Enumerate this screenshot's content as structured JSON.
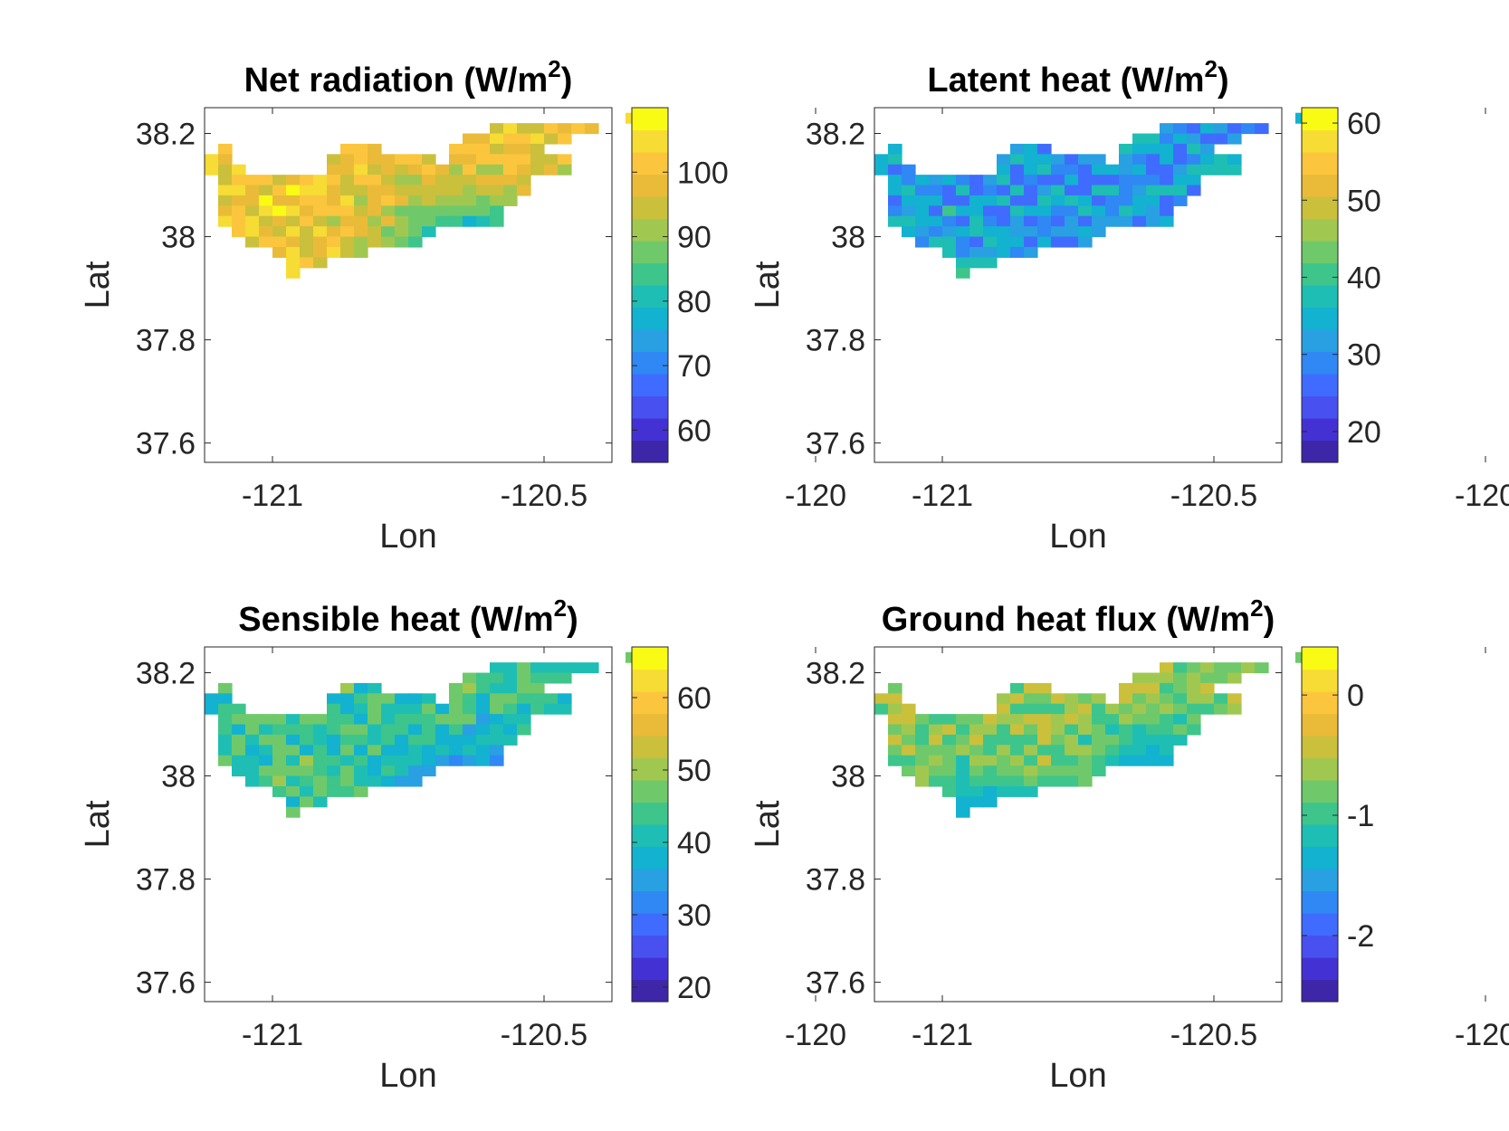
{
  "colormap": [
    "#3e26a8",
    "#4431d3",
    "#4850f0",
    "#3f6cfe",
    "#2f88f4",
    "#28a0e2",
    "#12b2d0",
    "#1ebeb4",
    "#3dc58c",
    "#6fc96a",
    "#a0c850",
    "#cac03c",
    "#eabb38",
    "#fbc63d",
    "#f6dc34",
    "#f9fb14"
  ],
  "chart_data": [
    {
      "type": "heatmap",
      "title": "Net radiation (W/m",
      "title_sup": "2",
      "title_close": ")",
      "xlabel": "Lon",
      "ylabel": "Lat",
      "xlim": [
        -121.125,
        -120.375
      ],
      "ylim": [
        37.5625,
        38.25
      ],
      "xticks": [
        -121,
        -120.5,
        -120
      ],
      "xtick_labels": [
        "-121",
        "-120.5",
        "-120"
      ],
      "yticks": [
        37.6,
        37.8,
        38,
        38.2
      ],
      "ytick_labels": [
        "37.6",
        "37.8",
        "38",
        "38.2"
      ],
      "clim": [
        55,
        110
      ],
      "cticks": [
        60,
        70,
        80,
        90,
        100
      ],
      "ctick_labels": [
        "60",
        "70",
        "80",
        "90",
        "100"
      ],
      "cell": [
        0.025,
        0.02
      ],
      "grid_origin": [
        -121.125,
        38.24
      ],
      "mask": [
        "...............................X",
        ".....................XXXXXXXX...",
        "...................XXXXXXXX.....",
        ".X........XXX.....XXXXXXX.......",
        "XX.......XXXXXXXX.XXXXXXXXX.....",
        "XXX......XXXXXXXXXXXXXXXXXX.....",
        ".XXXXXXXXXXXXXXXXXXXXXXX........",
        ".XXXXXXXXXXXXXXXXXXXXXXX........",
        ".XXXXXXXXXXXXXXXXXXXXXX.........",
        ".XXXXXXXXXXXXXXXXXXXXX..........",
        ".XXXXXXXXXXXXXXXXXXXXX..........",
        "..XXXXXXXXXXXXXXX...............",
        "...XXXXXXXXXXXXX................",
        ".....XXXXXXX....................",
        "......XXX.......................",
        "......X........................."
      ],
      "base": 100,
      "spread": 7,
      "patches": [
        [
          -120.54,
          37.88,
          0.1,
          72
        ],
        [
          -120.63,
          37.93,
          0.12,
          70
        ],
        [
          -120.05,
          38.06,
          0.06,
          62
        ],
        [
          -120.0,
          38.11,
          0.04,
          80
        ],
        [
          -121.02,
          37.87,
          0.06,
          108
        ]
      ],
      "seed": 11
    },
    {
      "type": "heatmap",
      "title": "Latent heat (W/m",
      "title_sup": "2",
      "title_close": ")",
      "xlabel": "Lon",
      "ylabel": "Lat",
      "xlim": [
        -121.125,
        -120.375
      ],
      "ylim": [
        37.5625,
        38.25
      ],
      "xticks": [
        -121,
        -120.5,
        -120
      ],
      "xtick_labels": [
        "-121",
        "-120.5",
        "-120"
      ],
      "yticks": [
        37.6,
        37.8,
        38,
        38.2
      ],
      "ytick_labels": [
        "37.6",
        "37.8",
        "38",
        "38.2"
      ],
      "clim": [
        16,
        62
      ],
      "cticks": [
        20,
        30,
        40,
        50,
        60
      ],
      "ctick_labels": [
        "20",
        "30",
        "40",
        "50",
        "60"
      ],
      "cell": [
        0.025,
        0.02
      ],
      "grid_origin": [
        -121.125,
        38.24
      ],
      "mask": [
        "...............................X",
        ".....................XXXXXXXX...",
        "...................XXXXXXXX.....",
        ".X........XXX.....XXXXXXX.......",
        "XX.......XXXXXXXX.XXXXXXXXX.....",
        "XXX......XXXXXXXXXXXXXXXXXX.....",
        ".XXXXXXXXXXXXXXXXXXXXXXX........",
        ".XXXXXXXXXXXXXXXXXXXXXXX........",
        ".XXXXXXXXXXXXXXXXXXXXXX.........",
        ".XXXXXXXXXXXXXXXXXXXXX..........",
        ".XXXXXXXXXXXXXXXXXXXXX..........",
        "..XXXXXXXXXXXXXXX...............",
        "...XXXXXXXXXXXXX................",
        ".....XXXXXXX....................",
        "......XXX.......................",
        "......X........................."
      ],
      "base": 32,
      "spread": 7,
      "patches": [
        [
          -120.2,
          37.88,
          0.12,
          52
        ],
        [
          -121.0,
          37.84,
          0.08,
          54
        ],
        [
          -120.05,
          38.05,
          0.06,
          22
        ],
        [
          -120.6,
          37.85,
          0.1,
          24
        ],
        [
          -120.15,
          38.13,
          0.08,
          42
        ]
      ],
      "seed": 23
    },
    {
      "type": "heatmap",
      "title": "Sensible heat (W/m",
      "title_sup": "2",
      "title_close": ")",
      "xlabel": "Lon",
      "ylabel": "Lat",
      "xlim": [
        -121.125,
        -120.375
      ],
      "ylim": [
        37.5625,
        38.25
      ],
      "xticks": [
        -121,
        -120.5,
        -120
      ],
      "xtick_labels": [
        "-121",
        "-120.5",
        "-120"
      ],
      "yticks": [
        37.6,
        37.8,
        38,
        38.2
      ],
      "ytick_labels": [
        "37.6",
        "37.8",
        "38",
        "38.2"
      ],
      "clim": [
        18,
        67
      ],
      "cticks": [
        20,
        30,
        40,
        50,
        60
      ],
      "ctick_labels": [
        "20",
        "30",
        "40",
        "50",
        "60"
      ],
      "cell": [
        0.025,
        0.02
      ],
      "grid_origin": [
        -121.125,
        38.24
      ],
      "mask": [
        "...............................X",
        ".....................XXXXXXXX...",
        "...................XXXXXXXX.....",
        ".X........XXX.....XXXXXXX.......",
        "XX.......XXXXXXXX.XXXXXXXXX.....",
        "XXX......XXXXXXXXXXXXXXXXXX.....",
        ".XXXXXXXXXXXXXXXXXXXXXXX........",
        ".XXXXXXXXXXXXXXXXXXXXXXX........",
        ".XXXXXXXXXXXXXXXXXXXXXX.........",
        ".XXXXXXXXXXXXXXXXXXXXX..........",
        ".XXXXXXXXXXXXXXXXXXXXX..........",
        "..XXXXXXXXXXXXXXX...............",
        "...XXXXXXXXXXXXX................",
        ".....XXXXXXX....................",
        "......XXX.......................",
        "......X........................."
      ],
      "base": 44,
      "spread": 6,
      "patches": [
        [
          -120.6,
          37.92,
          0.12,
          24
        ],
        [
          -120.46,
          37.86,
          0.07,
          64
        ],
        [
          -120.7,
          37.7,
          0.12,
          60
        ],
        [
          -120.06,
          38.04,
          0.05,
          26
        ],
        [
          -120.2,
          38.1,
          0.1,
          48
        ]
      ],
      "seed": 37
    },
    {
      "type": "heatmap",
      "title": "Ground heat flux (W/m",
      "title_sup": "2",
      "title_close": ")",
      "xlabel": "Lon",
      "ylabel": "Lat",
      "xlim": [
        -121.125,
        -120.375
      ],
      "ylim": [
        37.5625,
        38.25
      ],
      "xticks": [
        -121,
        -120.5,
        -120
      ],
      "xtick_labels": [
        "-121",
        "-120.5",
        "-120"
      ],
      "yticks": [
        37.6,
        37.8,
        38,
        38.2
      ],
      "ytick_labels": [
        "37.6",
        "37.8",
        "38",
        "38.2"
      ],
      "clim": [
        -2.55,
        0.4
      ],
      "cticks": [
        -2,
        -1,
        0
      ],
      "ctick_labels": [
        "-2",
        "-1",
        "0"
      ],
      "cell": [
        0.025,
        0.02
      ],
      "grid_origin": [
        -121.125,
        38.24
      ],
      "mask": [
        "...............................X",
        ".....................XXXXXXXX...",
        "...................XXXXXXXX.....",
        ".X........XXX.....XXXXXXX.......",
        "XX.......XXXXXXXX.XXXXXXXXX.....",
        "XXX......XXXXXXXXXXXXXXXXXX.....",
        ".XXXXXXXXXXXXXXXXXXXXXXX........",
        ".XXXXXXXXXXXXXXXXXXXXXXX........",
        ".XXXXXXXXXXXXXXXXXXXXXX.........",
        ".XXXXXXXXXXXXXXXXXXXXX..........",
        ".XXXXXXXXXXXXXXXXXXXXX..........",
        "..XXXXXXXXXXXXXXX...............",
        "...XXXXXXXXXXXXX................",
        ".....XXXXXXX....................",
        "......XXX.......................",
        "......X........................."
      ],
      "base": -0.7,
      "spread": 0.35,
      "patches": [
        [
          -120.72,
          37.68,
          0.08,
          0.1
        ],
        [
          -120.6,
          38.0,
          0.08,
          -1.5
        ],
        [
          -120.92,
          37.92,
          0.08,
          -1.4
        ],
        [
          -120.6,
          37.85,
          0.06,
          -1.2
        ],
        [
          -120.3,
          37.95,
          0.12,
          -0.3
        ]
      ],
      "seed": 53
    }
  ]
}
